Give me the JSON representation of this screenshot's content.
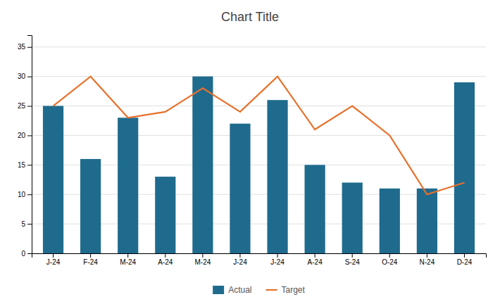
{
  "chart_data": {
    "type": "bar",
    "title": "Chart Title",
    "categories": [
      "J-24",
      "F-24",
      "M-24",
      "A-24",
      "M-24",
      "J-24",
      "J-24",
      "A-24",
      "S-24",
      "O-24",
      "N-24",
      "D-24"
    ],
    "series": [
      {
        "name": "Actual",
        "type": "bar",
        "color": "#1F6B8E",
        "values": [
          25,
          16,
          23,
          13,
          30,
          22,
          26,
          15,
          12,
          11,
          11,
          29
        ]
      },
      {
        "name": "Target",
        "type": "line",
        "color": "#E8702A",
        "values": [
          25,
          30,
          23,
          24,
          28,
          24,
          30,
          21,
          25,
          20,
          10,
          12
        ]
      }
    ],
    "ylim": [
      0,
      37
    ],
    "yticks": [
      0,
      5,
      10,
      15,
      20,
      25,
      30,
      35
    ],
    "grid": true,
    "legend": "bottom"
  }
}
